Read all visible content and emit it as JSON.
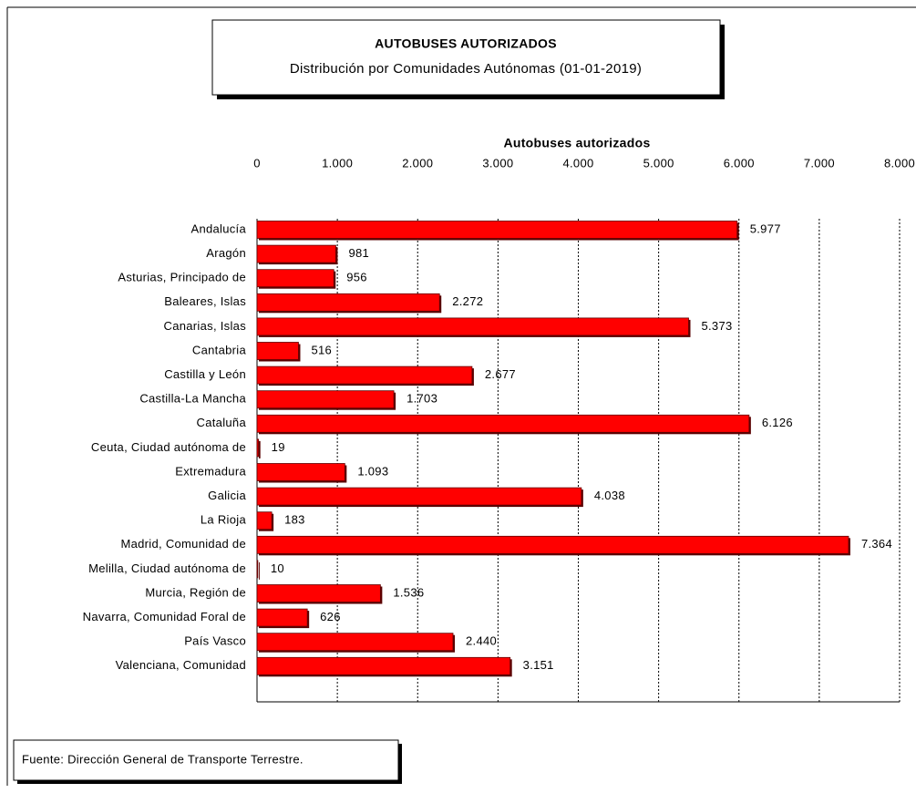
{
  "title": "AUTOBUSES AUTORIZADOS",
  "subtitle": "Distribución por Comunidades Autónomas (01-01-2019)",
  "source": "Fuente: Dirección General de Transporte Terrestre.",
  "chart_data": {
    "type": "bar",
    "orientation": "horizontal",
    "x_label": "Autobuses autorizados",
    "categories": [
      "Andalucía",
      "Aragón",
      "Asturias, Principado de",
      "Baleares, Islas",
      "Canarias, Islas",
      "Cantabria",
      "Castilla y León",
      "Castilla-La Mancha",
      "Cataluña",
      "Ceuta, Ciudad autónoma de",
      "Extremadura",
      "Galicia",
      "La Rioja",
      "Madrid, Comunidad de",
      "Melilla, Ciudad autónoma de",
      "Murcia, Región de",
      "Navarra, Comunidad Foral de",
      "País Vasco",
      "Valenciana, Comunidad"
    ],
    "values": [
      5977,
      981,
      956,
      2272,
      5373,
      516,
      2677,
      1703,
      6126,
      19,
      1093,
      4038,
      183,
      7364,
      10,
      1536,
      626,
      2440,
      3151
    ],
    "value_labels": [
      "5.977",
      "981",
      "956",
      "2.272",
      "5.373",
      "516",
      "2.677",
      "1.703",
      "6.126",
      "19",
      "1.093",
      "4.038",
      "183",
      "7.364",
      "10",
      "1.536",
      "626",
      "2.440",
      "3.151"
    ],
    "color": "#ff0000",
    "xlim": [
      0,
      8000
    ],
    "xticks": [
      0,
      {
        "value": 1000,
        "label": "1.000"
      },
      {
        "value": 2000,
        "label": "2.000"
      },
      {
        "value": 3000,
        "label": "3.000"
      },
      {
        "value": 4000,
        "label": "4.000"
      },
      {
        "value": 5000,
        "label": "5.000"
      },
      {
        "value": 6000,
        "label": "6.000"
      },
      {
        "value": 7000,
        "label": "7.000"
      },
      {
        "value": 8000,
        "label": "8.000"
      }
    ],
    "grid": true
  }
}
